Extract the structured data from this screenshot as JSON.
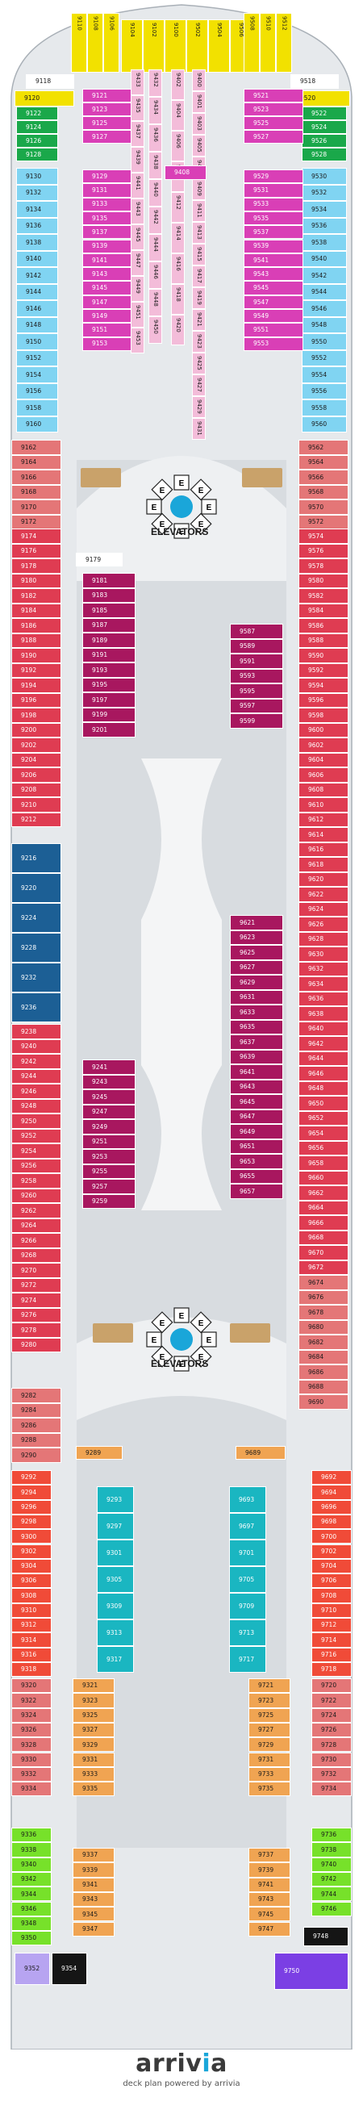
{
  "map": {
    "elevator_label_fwd": "ELEVATORS",
    "elevator_label_aft": "ELEVATORS",
    "elevator_letter": "E",
    "stair_glyph": "⇅",
    "bow_cabins_left": [
      "9110",
      "9108",
      "9106"
    ],
    "bow_cabins_center": [
      "9104",
      "9102",
      "9100",
      "9502",
      "9504",
      "9506"
    ],
    "bow_cabins_right": [
      "9508",
      "9510",
      "9512"
    ],
    "cabin_9118": "9118",
    "cabin_9518": "9518",
    "cabin_9120": "9120",
    "cabin_9520": "9520",
    "left_fwd_outer_green": [
      "9122",
      "9124",
      "9126",
      "9128"
    ],
    "left_fwd_outer_blue": [
      "9130",
      "9132",
      "9134",
      "9136",
      "9138",
      "9140",
      "9142",
      "9144",
      "9146",
      "9148",
      "9150",
      "9152",
      "9154",
      "9156",
      "9158",
      "9160"
    ],
    "right_fwd_outer_green": [
      "9522",
      "9524",
      "9526",
      "9528"
    ],
    "right_fwd_outer_blue": [
      "9530",
      "9532",
      "9534",
      "9536",
      "9538",
      "9540",
      "9542",
      "9544",
      "9546",
      "9548",
      "9550",
      "9552",
      "9554",
      "9556",
      "9558",
      "9560"
    ],
    "left_fwd_inner": [
      "9121",
      "9123",
      "9125",
      "9127",
      "9129",
      "9131",
      "9133",
      "9135",
      "9137",
      "9139",
      "9141",
      "9143",
      "9145",
      "9147",
      "9149",
      "9151",
      "9153"
    ],
    "right_fwd_inner": [
      "9521",
      "9523",
      "9525",
      "9527",
      "9529",
      "9531",
      "9533",
      "9535",
      "9537",
      "9539",
      "9541",
      "9543",
      "9545",
      "9547",
      "9549",
      "9551",
      "9553"
    ],
    "center_col_a": [
      "9433",
      "9435",
      "9437",
      "9439",
      "9441",
      "9443",
      "9445",
      "9447",
      "9449",
      "9451",
      "9453"
    ],
    "center_col_b": [
      "9432",
      "9434",
      "9436",
      "9438",
      "9440",
      "9442",
      "9444",
      "9446",
      "9448",
      "9450"
    ],
    "center_col_c": [
      "9402",
      "9404",
      "9406",
      "9410",
      "9412",
      "9414",
      "9416",
      "9418",
      "9420"
    ],
    "center_col_d": [
      "9400",
      "9401",
      "9403",
      "9405",
      "9407",
      "9409",
      "9411",
      "9413",
      "9415",
      "9417",
      "9419",
      "9421",
      "9423",
      "9425",
      "9427",
      "9429",
      "9431"
    ],
    "cabin_9408": "9408",
    "left_mid_outer": [
      "9162",
      "9164",
      "9166",
      "9168",
      "9170",
      "9172",
      "9174",
      "9176",
      "9178",
      "9180",
      "9182",
      "9184",
      "9186",
      "9188",
      "9190",
      "9192",
      "9194",
      "9196",
      "9198",
      "9200",
      "9202",
      "9204",
      "9206",
      "9208",
      "9210",
      "9212"
    ],
    "left_mid_suites": [
      "9216",
      "9220",
      "9224",
      "9228",
      "9232",
      "9236"
    ],
    "left_aft_outer": [
      "9238",
      "9240",
      "9242",
      "9244",
      "9246",
      "9248",
      "9250",
      "9252",
      "9254",
      "9256",
      "9258",
      "9260",
      "9262",
      "9264",
      "9266",
      "9268",
      "9270",
      "9272",
      "9274",
      "9276",
      "9278",
      "9280",
      "9282",
      "9284",
      "9286",
      "9288",
      "9290"
    ],
    "right_mid_outer": [
      "9562",
      "9564",
      "9566",
      "9568",
      "9570",
      "9572",
      "9574",
      "9576",
      "9578",
      "9580",
      "9582",
      "9584",
      "9586",
      "9588",
      "9590",
      "9592",
      "9594",
      "9596",
      "9598",
      "9600",
      "9602",
      "9604",
      "9606",
      "9608",
      "9610",
      "9612",
      "9614",
      "9616",
      "9618",
      "9620",
      "9622",
      "9624",
      "9626",
      "9628",
      "9630",
      "9632",
      "9634",
      "9636",
      "9638",
      "9640",
      "9642",
      "9644",
      "9646",
      "9648",
      "9650",
      "9652",
      "9654",
      "9656",
      "9658",
      "9660",
      "9662",
      "9664",
      "9666",
      "9668",
      "9670",
      "9672",
      "9674",
      "9676",
      "9678",
      "9680",
      "9682",
      "9684",
      "9686",
      "9688",
      "9690"
    ],
    "left_inner_fwd": [
      "9179",
      "9181",
      "9183",
      "9185",
      "9187",
      "9189",
      "9191",
      "9193",
      "9195",
      "9197",
      "9199",
      "9201"
    ],
    "right_inner_fwd": [
      "9587",
      "9589",
      "9591",
      "9593",
      "9595",
      "9597",
      "9599"
    ],
    "right_inner_aft": [
      "9621",
      "9623",
      "9625",
      "9627",
      "9629",
      "9631",
      "9633",
      "9635",
      "9637",
      "9639",
      "9641",
      "9643",
      "9645",
      "9647",
      "9649",
      "9651",
      "9653",
      "9655",
      "9657"
    ],
    "left_inner_aft": [
      "9241",
      "9243",
      "9245",
      "9247",
      "9249",
      "9251",
      "9253",
      "9255",
      "9257",
      "9259"
    ],
    "cabin_9289": "9289",
    "cabin_9689": "9689",
    "left_stern_outer_red": [
      "9292",
      "9294",
      "9296",
      "9298",
      "9300",
      "9302",
      "9304",
      "9306",
      "9308",
      "9310",
      "9312",
      "9314",
      "9316",
      "9318"
    ],
    "left_stern_outer_pink": [
      "9320",
      "9322",
      "9324",
      "9326",
      "9328",
      "9330",
      "9332",
      "9334"
    ],
    "left_stern_outer_green": [
      "9336",
      "9338",
      "9340",
      "9342",
      "9344",
      "9346",
      "9348",
      "9350"
    ],
    "left_stern_teal": [
      "9293",
      "9297",
      "9301",
      "9305",
      "9309",
      "9313",
      "9317"
    ],
    "left_stern_orange": [
      "9321",
      "9323",
      "9325",
      "9327",
      "9329",
      "9331",
      "9333",
      "9335",
      "9337",
      "9339",
      "9341",
      "9343",
      "9345",
      "9347"
    ],
    "right_stern_outer_red": [
      "9692",
      "9694",
      "9696",
      "9698",
      "9700",
      "9702",
      "9704",
      "9706",
      "9708",
      "9710",
      "9712",
      "9714",
      "9716",
      "9718"
    ],
    "right_stern_outer_pink": [
      "9720",
      "9722",
      "9724",
      "9726",
      "9728",
      "9730",
      "9732",
      "9734"
    ],
    "right_stern_outer_green": [
      "9736",
      "9738",
      "9740",
      "9742",
      "9744",
      "9746"
    ],
    "right_stern_teal": [
      "9693",
      "9697",
      "9701",
      "9705",
      "9709",
      "9713",
      "9717"
    ],
    "right_stern_orange": [
      "9721",
      "9723",
      "9725",
      "9727",
      "9729",
      "9731",
      "9733",
      "9735",
      "9737",
      "9739",
      "9741",
      "9743",
      "9745",
      "9747"
    ],
    "cabin_9748": "9748",
    "cabin_9352": "9352",
    "cabin_9354": "9354",
    "cabin_9750": "9750",
    "colors": {
      "yellow": "#f2e100",
      "green": "#1aa84a",
      "light_blue": "#80d4f2",
      "magenta": "#d93fb6",
      "pink_light": "#f3bcd9",
      "salmon": "#e47677",
      "red": "#df3c52",
      "navy": "#1c5f95",
      "maroon": "#a8175f",
      "orange_red": "#f04b38",
      "teal": "#1ab6c1",
      "tan": "#f0a452",
      "lime": "#77e12a",
      "purple": "#7b3fe4",
      "lavender": "#b7a4f1",
      "black": "#151515",
      "hull": "#d8dce0",
      "outline": "#a9b0b7",
      "accent_blue": "#1aa6d9"
    }
  },
  "footer": {
    "brand_main": "arriv",
    "brand_i": "i",
    "brand_tail": "a",
    "tagline": "deck plan powered by arrivia"
  }
}
